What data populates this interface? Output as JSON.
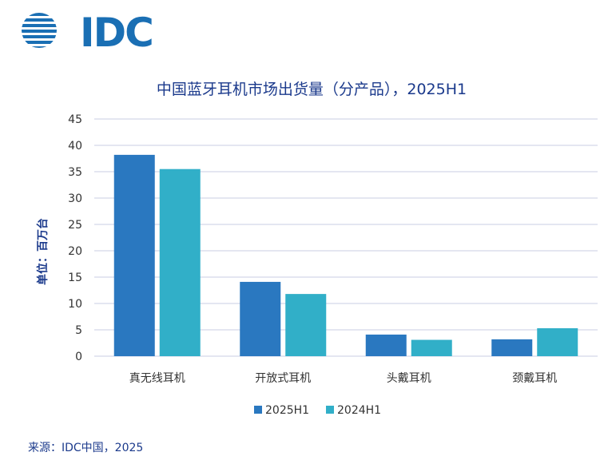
{
  "logo_text": "IDC",
  "source_text": "来源：IDC中国，2025",
  "colors": {
    "series_2025": "#2a78c0",
    "series_2024": "#31afc8",
    "grid": "#c9cde3",
    "title": "#1b3a8c"
  },
  "chart_data": {
    "type": "bar",
    "title": "中国蓝牙耳机市场出货量（分产品），2025H1",
    "ylabel": "单位：百万台",
    "xlabel": "",
    "ylim": [
      0,
      45
    ],
    "yticks": [
      0,
      5,
      10,
      15,
      20,
      25,
      30,
      35,
      40,
      45
    ],
    "grid": true,
    "legend_position": "bottom",
    "categories": [
      "真无线耳机",
      "开放式耳机",
      "头戴耳机",
      "颈戴耳机"
    ],
    "series": [
      {
        "name": "2025H1",
        "values": [
          38.2,
          14.1,
          4.1,
          3.2
        ]
      },
      {
        "name": "2024H1",
        "values": [
          35.5,
          11.8,
          3.1,
          5.3
        ]
      }
    ]
  }
}
